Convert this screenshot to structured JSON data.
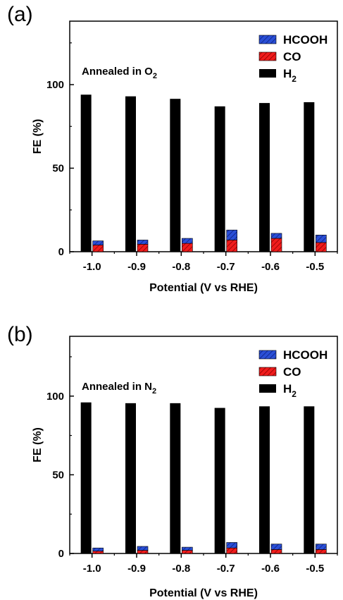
{
  "chart_data": [
    {
      "type": "bar",
      "stacked": "HCOOH and CO stacked; H2 separate",
      "panel_label": "(a)",
      "annotation": {
        "text": "Annealed in O",
        "subscript": "2"
      },
      "xlabel": "Potential (V vs RHE)",
      "ylabel": "FE (%)",
      "ylim": [
        0,
        138
      ],
      "yticks": [
        0,
        50,
        100
      ],
      "categories": [
        "-1.0",
        "-0.9",
        "-0.8",
        "-0.7",
        "-0.6",
        "-0.5"
      ],
      "series": [
        {
          "name": "HCOOH",
          "color": "#2a4fd6",
          "pattern": "hatched",
          "values": [
            2.5,
            2.5,
            3,
            6,
            3,
            4.5
          ]
        },
        {
          "name": "CO",
          "color": "#f01c1c",
          "pattern": "hatched",
          "values": [
            4,
            4.5,
            5,
            7,
            8,
            5.5
          ]
        },
        {
          "name": "H2",
          "label": "H",
          "subscript": "2",
          "color": "#000000",
          "values": [
            94,
            93,
            91.5,
            87,
            89,
            89.5
          ]
        }
      ],
      "legend": "top-right"
    },
    {
      "type": "bar",
      "stacked": "HCOOH and CO stacked; H2 separate",
      "panel_label": "(b)",
      "annotation": {
        "text": "Annealed in N",
        "subscript": "2"
      },
      "xlabel": "Potential (V vs RHE)",
      "ylabel": "FE (%)",
      "ylim": [
        0,
        138
      ],
      "yticks": [
        0,
        50,
        100
      ],
      "categories": [
        "-1.0",
        "-0.9",
        "-0.8",
        "-0.7",
        "-0.6",
        "-0.5"
      ],
      "series": [
        {
          "name": "HCOOH",
          "color": "#2a4fd6",
          "pattern": "hatched",
          "values": [
            2,
            2.5,
            2,
            3.5,
            3.5,
            3.5
          ]
        },
        {
          "name": "CO",
          "color": "#f01c1c",
          "pattern": "hatched",
          "values": [
            1.5,
            2,
            2,
            3.5,
            2.5,
            2.5
          ]
        },
        {
          "name": "H2",
          "label": "H",
          "subscript": "2",
          "color": "#000000",
          "values": [
            96,
            95.5,
            95.5,
            92.5,
            93.5,
            93.5
          ]
        }
      ],
      "legend": "top-right"
    }
  ]
}
